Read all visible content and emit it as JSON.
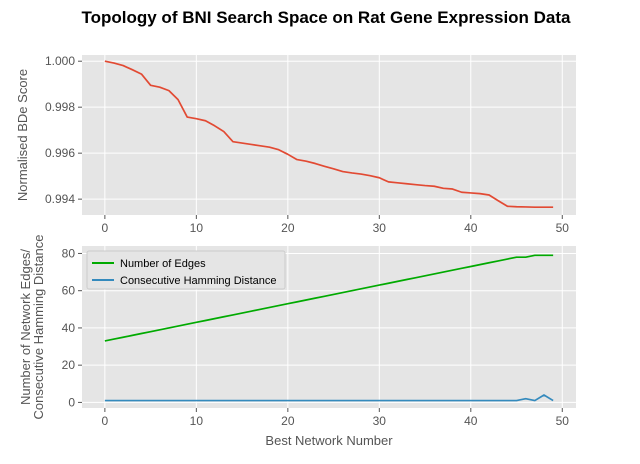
{
  "figure": {
    "title": "Topology of BNI Search Space on Rat Gene Expression Data",
    "colors": {
      "panel_bg": "#e5e5e5",
      "grid": "#ffffff"
    }
  },
  "chart_data": [
    {
      "type": "line",
      "title": "",
      "xlabel": "",
      "ylabel": "Normalised BDe Score",
      "xlim": [
        -2.5,
        51.5
      ],
      "ylim": [
        0.99331,
        1.00027
      ],
      "xticks": [
        0,
        10,
        20,
        30,
        40,
        50
      ],
      "yticks": [
        0.994,
        0.996,
        0.998,
        1.0
      ],
      "xtick_labels": [
        "0",
        "10",
        "20",
        "30",
        "40",
        "50"
      ],
      "ytick_labels": [
        "0.994",
        "0.996",
        "0.998",
        "1.000"
      ],
      "grid": true,
      "series": [
        {
          "color": "#e24a33",
          "x": [
            0,
            1,
            2,
            3,
            4,
            5,
            6,
            7,
            8,
            9,
            10,
            11,
            12,
            13,
            14,
            15,
            16,
            17,
            18,
            19,
            20,
            21,
            22,
            23,
            24,
            25,
            26,
            27,
            28,
            29,
            30,
            31,
            32,
            33,
            34,
            35,
            36,
            37,
            38,
            39,
            40,
            41,
            42,
            43,
            44,
            45,
            46,
            47,
            48,
            49
          ],
          "y": [
            1.0,
            0.99992,
            0.99981,
            0.99963,
            0.99944,
            0.99895,
            0.99887,
            0.99872,
            0.99833,
            0.99757,
            0.9975,
            0.99741,
            0.99719,
            0.99694,
            0.9965,
            0.99644,
            0.99638,
            0.99632,
            0.99626,
            0.99615,
            0.99595,
            0.99572,
            0.99565,
            0.99555,
            0.99543,
            0.99532,
            0.9952,
            0.99514,
            0.99509,
            0.99502,
            0.99493,
            0.99475,
            0.99471,
            0.99467,
            0.99463,
            0.99459,
            0.99456,
            0.99447,
            0.99444,
            0.9943,
            0.99427,
            0.99424,
            0.99418,
            0.99393,
            0.99369,
            0.99367,
            0.99366,
            0.99365,
            0.99365,
            0.99365
          ]
        }
      ]
    },
    {
      "type": "line",
      "title": "",
      "xlabel": "Best Network Number",
      "ylabel": "Number of Network Edges/\nConsecutive Hamming Distance",
      "ylabel_lines": [
        "Number of Network Edges/",
        "Consecutive Hamming Distance"
      ],
      "xlim": [
        -2.5,
        51.5
      ],
      "ylim": [
        -3,
        84
      ],
      "xticks": [
        0,
        10,
        20,
        30,
        40,
        50
      ],
      "yticks": [
        0,
        20,
        40,
        60,
        80
      ],
      "xtick_labels": [
        "0",
        "10",
        "20",
        "30",
        "40",
        "50"
      ],
      "ytick_labels": [
        "0",
        "20",
        "40",
        "60",
        "80"
      ],
      "grid": true,
      "legend": "top-left",
      "series": [
        {
          "name": "Number of Edges",
          "color": "#00aa00",
          "x": [
            0,
            1,
            2,
            3,
            4,
            5,
            6,
            7,
            8,
            9,
            10,
            11,
            12,
            13,
            14,
            15,
            16,
            17,
            18,
            19,
            20,
            21,
            22,
            23,
            24,
            25,
            26,
            27,
            28,
            29,
            30,
            31,
            32,
            33,
            34,
            35,
            36,
            37,
            38,
            39,
            40,
            41,
            42,
            43,
            44,
            45,
            46,
            47,
            48,
            49
          ],
          "y": [
            33,
            34,
            35,
            36,
            37,
            38,
            39,
            40,
            41,
            42,
            43,
            44,
            45,
            46,
            47,
            48,
            49,
            50,
            51,
            52,
            53,
            54,
            55,
            56,
            57,
            58,
            59,
            60,
            61,
            62,
            63,
            64,
            65,
            66,
            67,
            68,
            69,
            70,
            71,
            72,
            73,
            74,
            75,
            76,
            77,
            78,
            78,
            79,
            79,
            79
          ]
        },
        {
          "name": "Consecutive Hamming Distance",
          "color": "#348abd",
          "x": [
            0,
            1,
            2,
            3,
            4,
            5,
            6,
            7,
            8,
            9,
            10,
            11,
            12,
            13,
            14,
            15,
            16,
            17,
            18,
            19,
            20,
            21,
            22,
            23,
            24,
            25,
            26,
            27,
            28,
            29,
            30,
            31,
            32,
            33,
            34,
            35,
            36,
            37,
            38,
            39,
            40,
            41,
            42,
            43,
            44,
            45,
            46,
            47,
            48,
            49
          ],
          "y": [
            1,
            1,
            1,
            1,
            1,
            1,
            1,
            1,
            1,
            1,
            1,
            1,
            1,
            1,
            1,
            1,
            1,
            1,
            1,
            1,
            1,
            1,
            1,
            1,
            1,
            1,
            1,
            1,
            1,
            1,
            1,
            1,
            1,
            1,
            1,
            1,
            1,
            1,
            1,
            1,
            1,
            1,
            1,
            1,
            1,
            1,
            2,
            1,
            4,
            1
          ]
        }
      ]
    }
  ]
}
